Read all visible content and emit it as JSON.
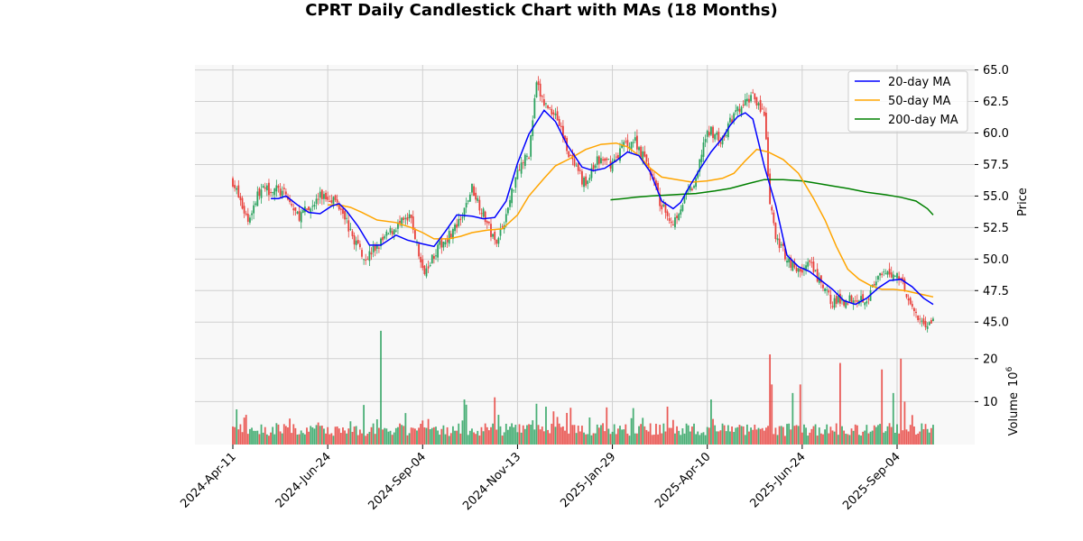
{
  "chart_data": {
    "type": "candlestick",
    "title": "CPRT Daily Candlestick Chart with MAs (18 Months)",
    "ylabel_price": "Price",
    "ylabel_volume": "Volume",
    "volume_multiplier": "10",
    "volume_multiplier_exp": "6",
    "price_ylim": [
      43.8,
      65.4
    ],
    "volume_ylim": [
      0,
      25
    ],
    "price_ticks": [
      "45.0",
      "47.5",
      "50.0",
      "52.5",
      "55.0",
      "57.5",
      "60.0",
      "62.5",
      "65.0"
    ],
    "volume_ticks": [
      "10",
      "20"
    ],
    "x_tick_labels": [
      "2024-Apr-11",
      "2024-Jun-24",
      "2024-Sep-04",
      "2024-Nov-13",
      "2025-Jan-29",
      "2025-Apr-10",
      "2025-Jun-24",
      "2025-Sep-04"
    ],
    "x_tick_index": [
      0,
      50,
      100,
      150,
      200,
      250,
      300,
      350
    ],
    "n_bars": 370,
    "legend": [
      {
        "label": "20-day MA",
        "color": "#0000ff"
      },
      {
        "label": "50-day MA",
        "color": "#ffa500"
      },
      {
        "label": "200-day MA",
        "color": "#008000"
      }
    ],
    "colors": {
      "up": "#2ca25f",
      "down": "#e8413c",
      "grid": "#d0d0d0",
      "panel_bg": "#f8f8f8"
    },
    "close_path": [
      [
        0,
        56.2
      ],
      [
        4,
        54.5
      ],
      [
        8,
        53.1
      ],
      [
        14,
        55.4
      ],
      [
        22,
        55.6
      ],
      [
        28,
        55.0
      ],
      [
        34,
        53.4
      ],
      [
        40,
        53.9
      ],
      [
        46,
        55.0
      ],
      [
        52,
        54.9
      ],
      [
        58,
        54.0
      ],
      [
        62,
        52.0
      ],
      [
        70,
        50.1
      ],
      [
        78,
        51.3
      ],
      [
        86,
        52.6
      ],
      [
        94,
        53.2
      ],
      [
        100,
        49.0
      ],
      [
        106,
        50.4
      ],
      [
        112,
        51.6
      ],
      [
        120,
        52.9
      ],
      [
        126,
        55.7
      ],
      [
        132,
        53.6
      ],
      [
        138,
        51.3
      ],
      [
        144,
        53.4
      ],
      [
        150,
        57.2
      ],
      [
        156,
        58.3
      ],
      [
        160,
        63.8
      ],
      [
        164,
        62.3
      ],
      [
        170,
        61.6
      ],
      [
        175,
        59.3
      ],
      [
        180,
        57.2
      ],
      [
        186,
        55.9
      ],
      [
        192,
        57.8
      ],
      [
        200,
        57.6
      ],
      [
        206,
        59.1
      ],
      [
        212,
        59.4
      ],
      [
        220,
        57.0
      ],
      [
        226,
        54.1
      ],
      [
        232,
        52.9
      ],
      [
        236,
        54.2
      ],
      [
        240,
        55.3
      ],
      [
        244,
        56.0
      ],
      [
        248,
        59.3
      ],
      [
        252,
        60.2
      ],
      [
        258,
        59.3
      ],
      [
        262,
        60.9
      ],
      [
        266,
        61.7
      ],
      [
        270,
        62.3
      ],
      [
        274,
        63.2
      ],
      [
        276,
        62.6
      ],
      [
        280,
        61.4
      ],
      [
        283,
        54.4
      ],
      [
        286,
        51.7
      ],
      [
        292,
        50.1
      ],
      [
        298,
        49.0
      ],
      [
        304,
        49.6
      ],
      [
        310,
        47.9
      ],
      [
        316,
        46.6
      ],
      [
        322,
        46.7
      ],
      [
        328,
        47.0
      ],
      [
        334,
        46.9
      ],
      [
        340,
        48.4
      ],
      [
        346,
        48.9
      ],
      [
        352,
        48.6
      ],
      [
        356,
        46.9
      ],
      [
        360,
        45.3
      ],
      [
        366,
        44.9
      ],
      [
        369,
        45.0
      ]
    ],
    "ma20": [
      [
        20,
        54.8
      ],
      [
        24,
        54.8
      ],
      [
        28,
        55.0
      ],
      [
        34,
        54.3
      ],
      [
        40,
        53.7
      ],
      [
        46,
        53.6
      ],
      [
        52,
        54.2
      ],
      [
        56,
        54.4
      ],
      [
        60,
        53.8
      ],
      [
        66,
        52.6
      ],
      [
        72,
        51.1
      ],
      [
        78,
        51.1
      ],
      [
        86,
        51.9
      ],
      [
        92,
        51.5
      ],
      [
        100,
        51.2
      ],
      [
        106,
        51.0
      ],
      [
        112,
        52.2
      ],
      [
        118,
        53.5
      ],
      [
        126,
        53.4
      ],
      [
        132,
        53.2
      ],
      [
        138,
        53.3
      ],
      [
        144,
        54.6
      ],
      [
        150,
        57.6
      ],
      [
        156,
        59.9
      ],
      [
        164,
        61.8
      ],
      [
        170,
        60.9
      ],
      [
        176,
        59.1
      ],
      [
        184,
        57.3
      ],
      [
        190,
        57.0
      ],
      [
        196,
        57.2
      ],
      [
        202,
        57.8
      ],
      [
        208,
        58.5
      ],
      [
        214,
        58.2
      ],
      [
        220,
        56.9
      ],
      [
        226,
        54.6
      ],
      [
        232,
        54.0
      ],
      [
        236,
        54.5
      ],
      [
        240,
        55.6
      ],
      [
        246,
        57.1
      ],
      [
        252,
        58.5
      ],
      [
        258,
        59.6
      ],
      [
        262,
        60.6
      ],
      [
        266,
        61.3
      ],
      [
        270,
        61.6
      ],
      [
        274,
        61.1
      ],
      [
        280,
        57.4
      ],
      [
        286,
        54.3
      ],
      [
        292,
        50.3
      ],
      [
        298,
        49.4
      ],
      [
        304,
        49.0
      ],
      [
        310,
        48.3
      ],
      [
        316,
        47.6
      ],
      [
        322,
        46.7
      ],
      [
        328,
        46.4
      ],
      [
        334,
        46.9
      ],
      [
        340,
        47.7
      ],
      [
        346,
        48.3
      ],
      [
        352,
        48.4
      ],
      [
        358,
        47.8
      ],
      [
        364,
        46.9
      ],
      [
        369,
        46.4
      ]
    ],
    "ma50": [
      [
        50,
        54.3
      ],
      [
        56,
        54.3
      ],
      [
        62,
        54.1
      ],
      [
        68,
        53.7
      ],
      [
        76,
        53.1
      ],
      [
        86,
        52.9
      ],
      [
        94,
        52.5
      ],
      [
        100,
        52.1
      ],
      [
        106,
        51.6
      ],
      [
        114,
        51.6
      ],
      [
        120,
        51.8
      ],
      [
        126,
        52.1
      ],
      [
        134,
        52.3
      ],
      [
        142,
        52.4
      ],
      [
        150,
        53.5
      ],
      [
        156,
        55.0
      ],
      [
        164,
        56.4
      ],
      [
        170,
        57.4
      ],
      [
        178,
        58.0
      ],
      [
        186,
        58.7
      ],
      [
        194,
        59.1
      ],
      [
        202,
        59.2
      ],
      [
        208,
        58.9
      ],
      [
        214,
        58.2
      ],
      [
        220,
        57.2
      ],
      [
        226,
        56.5
      ],
      [
        234,
        56.3
      ],
      [
        242,
        56.1
      ],
      [
        250,
        56.2
      ],
      [
        258,
        56.4
      ],
      [
        264,
        56.8
      ],
      [
        270,
        57.8
      ],
      [
        276,
        58.7
      ],
      [
        282,
        58.5
      ],
      [
        290,
        57.9
      ],
      [
        298,
        56.8
      ],
      [
        306,
        54.8
      ],
      [
        312,
        53.1
      ],
      [
        318,
        51.0
      ],
      [
        324,
        49.2
      ],
      [
        330,
        48.4
      ],
      [
        336,
        47.9
      ],
      [
        342,
        47.6
      ],
      [
        348,
        47.6
      ],
      [
        354,
        47.5
      ],
      [
        360,
        47.3
      ],
      [
        366,
        47.1
      ],
      [
        369,
        47.0
      ]
    ],
    "ma200": [
      [
        199,
        54.7
      ],
      [
        206,
        54.8
      ],
      [
        212,
        54.9
      ],
      [
        220,
        55.0
      ],
      [
        232,
        55.1
      ],
      [
        244,
        55.2
      ],
      [
        254,
        55.4
      ],
      [
        262,
        55.6
      ],
      [
        272,
        56.0
      ],
      [
        280,
        56.3
      ],
      [
        290,
        56.3
      ],
      [
        300,
        56.2
      ],
      [
        308,
        56.0
      ],
      [
        316,
        55.8
      ],
      [
        324,
        55.6
      ],
      [
        334,
        55.3
      ],
      [
        344,
        55.1
      ],
      [
        352,
        54.9
      ],
      [
        360,
        54.6
      ],
      [
        366,
        54.0
      ],
      [
        369,
        53.5
      ]
    ]
  }
}
